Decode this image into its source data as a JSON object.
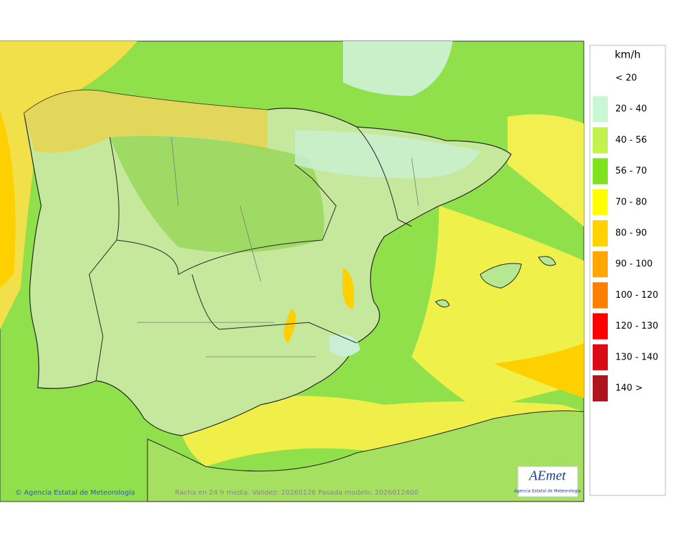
{
  "legend": {
    "unit": "km/h",
    "items": [
      {
        "label": "< 20",
        "color": "#ffffff"
      },
      {
        "label": "20 - 40",
        "color": "#c9f7d4"
      },
      {
        "label": "40 - 56",
        "color": "#c3f24e"
      },
      {
        "label": "56 - 70",
        "color": "#7ee21e"
      },
      {
        "label": "70 - 80",
        "color": "#ffff00"
      },
      {
        "label": "80 - 90",
        "color": "#ffd200"
      },
      {
        "label": "90 - 100",
        "color": "#ffa600"
      },
      {
        "label": "100 - 120",
        "color": "#ff8000"
      },
      {
        "label": "120 - 130",
        "color": "#ff0000"
      },
      {
        "label": "130 - 140",
        "color": "#dc0a14"
      },
      {
        "label": "140 >",
        "color": "#b0141e"
      }
    ]
  },
  "footer": {
    "credit": "© Agencia Estatal de Meteorología",
    "caption": "Racha en 24 h media. Validez: 20260126 Pasada modelo: 2026012400"
  },
  "logo": {
    "name": "AEmet",
    "subtitle": "Agencia Estatal de Meteorología"
  }
}
